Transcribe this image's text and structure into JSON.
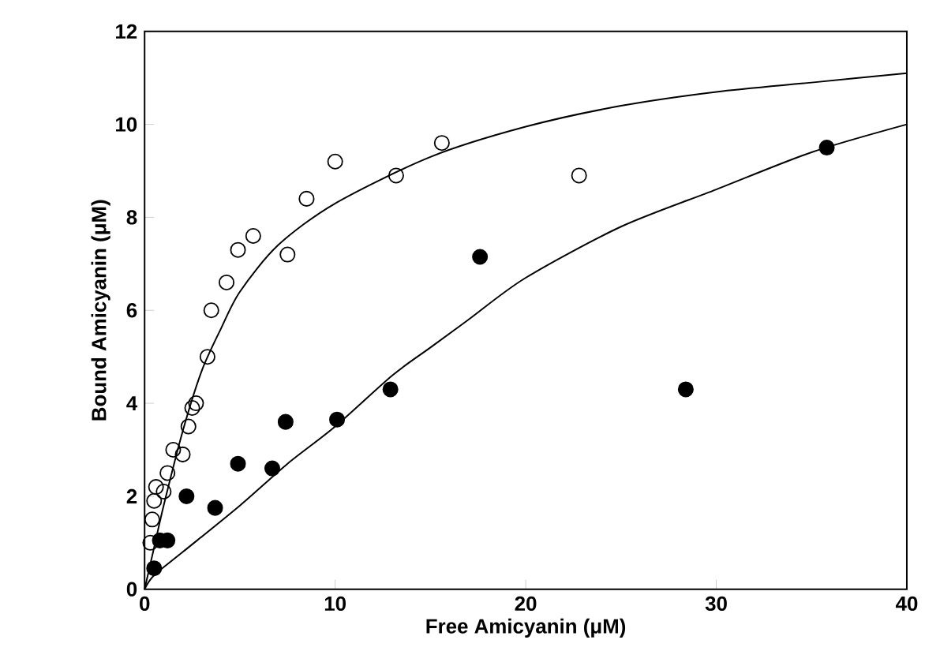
{
  "chart_data": {
    "type": "scatter",
    "xlabel": "Free Amicyanin (μM)",
    "ylabel": "Bound Amicyanin (μM)",
    "xlim": [
      0,
      40
    ],
    "ylim": [
      0,
      12
    ],
    "xticks": [
      0,
      10,
      20,
      30,
      40
    ],
    "yticks": [
      0,
      2,
      4,
      6,
      8,
      10,
      12
    ],
    "grid": false,
    "series": [
      {
        "color": "#000000",
        "marker": "circle",
        "x": [
          0.3,
          0.4,
          0.5,
          0.6,
          1.0,
          1.2,
          1.5,
          2.0,
          2.3,
          2.5,
          2.7,
          3.3,
          3.5,
          4.3,
          4.9,
          5.7,
          7.5,
          8.5,
          10.0,
          13.2,
          15.6,
          22.8
        ],
        "values": [
          1.0,
          1.5,
          1.9,
          2.2,
          2.1,
          2.5,
          3.0,
          2.9,
          3.5,
          3.9,
          4.0,
          5.0,
          6.0,
          6.6,
          7.3,
          7.6,
          7.2,
          8.4,
          9.2,
          8.9,
          9.6,
          8.9
        ]
      },
      {
        "color": "#000000",
        "marker": "circle",
        "x": [
          0.5,
          0.8,
          1.2,
          2.2,
          3.7,
          4.9,
          6.7,
          7.4,
          10.1,
          12.9,
          17.6,
          28.4,
          35.8
        ],
        "values": [
          0.45,
          1.05,
          1.05,
          2.0,
          1.75,
          2.7,
          2.6,
          3.6,
          3.65,
          4.3,
          7.15,
          4.3,
          9.5
        ]
      },
      {
        "type": "line",
        "color": "#000000",
        "marker": "none",
        "x": [
          0,
          0.5,
          1,
          2,
          3,
          4,
          5,
          7,
          10,
          15,
          20,
          25,
          30,
          35,
          40
        ],
        "values": [
          0,
          0.9,
          1.8,
          3.4,
          4.7,
          5.6,
          6.4,
          7.4,
          8.3,
          9.3,
          9.95,
          10.4,
          10.7,
          10.9,
          11.1
        ]
      },
      {
        "type": "line",
        "color": "#000000",
        "marker": "none",
        "x": [
          0,
          0.5,
          2,
          5,
          7.5,
          10,
          13,
          15,
          17,
          20,
          25,
          30,
          35,
          40
        ],
        "values": [
          0,
          0.3,
          0.8,
          1.8,
          2.7,
          3.5,
          4.6,
          5.2,
          5.8,
          6.7,
          7.8,
          8.6,
          9.4,
          10.0
        ]
      }
    ]
  }
}
